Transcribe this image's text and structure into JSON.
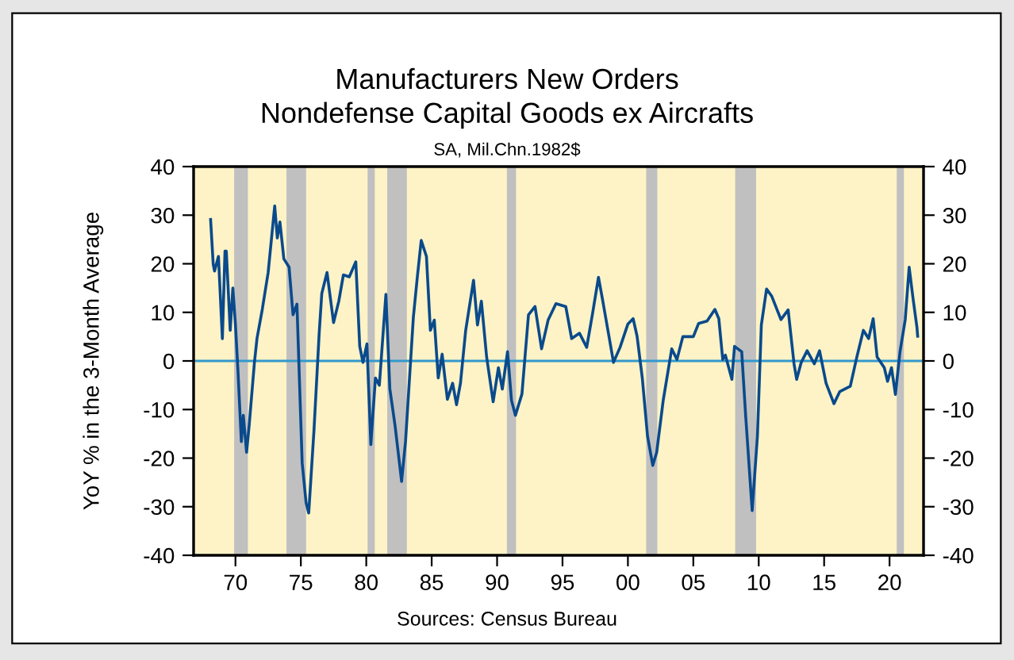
{
  "chart_data": {
    "type": "line",
    "title": "Manufacturers New Orders\nNondefense Capital Goods ex Aircrafts",
    "subtitle": "SA, Mil.Chn.1982$",
    "ylabel": "YoY % in the 3-Month Average",
    "annotations": [
      "Sources: Census Bureau"
    ],
    "series": [
      {
        "color": "#0a4a8c",
        "x": [
          1968.1,
          1968.3,
          1968.4,
          1968.7,
          1969.0,
          1969.2,
          1969.3,
          1969.6,
          1969.8,
          1970.0,
          1970.2,
          1970.45,
          1970.6,
          1970.85,
          1971.05,
          1971.45,
          1971.65,
          1972.05,
          1972.5,
          1973.0,
          1973.2,
          1973.4,
          1973.7,
          1974.1,
          1974.4,
          1974.7,
          1975.1,
          1975.4,
          1975.6,
          1976.0,
          1976.4,
          1976.6,
          1977.0,
          1977.5,
          1977.9,
          1978.25,
          1978.7,
          1979.2,
          1979.5,
          1979.75,
          1980.05,
          1980.35,
          1980.7,
          1981.0,
          1981.5,
          1981.8,
          1982.2,
          1982.7,
          1983.0,
          1983.6,
          1983.9,
          1984.2,
          1984.6,
          1984.9,
          1985.2,
          1985.5,
          1985.8,
          1986.2,
          1986.6,
          1986.9,
          1987.2,
          1987.6,
          1988.2,
          1988.5,
          1988.8,
          1989.2,
          1989.7,
          1990.1,
          1990.4,
          1990.8,
          1991.1,
          1991.4,
          1991.9,
          1992.4,
          1992.9,
          1993.4,
          1993.9,
          1994.5,
          1995.25,
          1995.7,
          1996.3,
          1996.85,
          1997.3,
          1997.75,
          1998.05,
          1998.55,
          1998.9,
          1999.4,
          2000.0,
          2000.4,
          2000.7,
          2001.1,
          2001.5,
          2001.9,
          2002.2,
          2002.7,
          2003.35,
          2003.75,
          2004.2,
          2005.0,
          2005.4,
          2006.05,
          2006.65,
          2006.95,
          2007.25,
          2007.45,
          2007.95,
          2008.15,
          2008.7,
          2009.0,
          2009.5,
          2009.9,
          2010.2,
          2010.6,
          2011.0,
          2011.7,
          2012.25,
          2012.7,
          2012.9,
          2013.25,
          2013.7,
          2014.25,
          2014.65,
          2015.15,
          2015.75,
          2016.2,
          2017.0,
          2017.5,
          2018.0,
          2018.4,
          2018.75,
          2019.05,
          2019.6,
          2019.85,
          2020.15,
          2020.45,
          2020.8,
          2021.2,
          2021.5,
          2021.8,
          2022.1,
          2022.15
        ],
        "values": [
          29.1,
          19.9,
          18.5,
          21.5,
          4.6,
          22.6,
          22.6,
          6.3,
          15,
          7.4,
          -2.5,
          -16.6,
          -11.2,
          -18.8,
          -13.2,
          -0.3,
          4.7,
          10.6,
          18.2,
          31.9,
          25.3,
          28.6,
          21,
          19.3,
          9.5,
          11.7,
          -21,
          -29.2,
          -31.3,
          -14.4,
          5.7,
          13.9,
          18.2,
          7.9,
          12.3,
          17.7,
          17.3,
          20.4,
          3,
          -0.3,
          3.5,
          -17.2,
          -3.5,
          -5,
          13.7,
          -5.7,
          -13.3,
          -24.8,
          -16.6,
          9,
          17.2,
          24.8,
          21.5,
          6.3,
          8.4,
          -3.5,
          1.4,
          -7.9,
          -4.6,
          -9,
          -4.6,
          6.3,
          16.6,
          7.4,
          12.3,
          0.8,
          -8.4,
          -1.4,
          -5.8,
          1.9,
          -8.1,
          -11.2,
          -6.8,
          9.5,
          11.2,
          2.5,
          8.4,
          11.8,
          11.2,
          4.6,
          5.7,
          2.8,
          9.8,
          17.2,
          12.8,
          5.1,
          -0.3,
          2.8,
          7.6,
          8.7,
          5.1,
          -3.5,
          -15.5,
          -21.5,
          -18.8,
          -8.1,
          2.5,
          0.3,
          5,
          5,
          7.7,
          8.2,
          10.6,
          8.7,
          0.3,
          1.2,
          -3.8,
          3,
          1.9,
          -11.2,
          -30.8,
          -15.5,
          7.4,
          14.8,
          13.3,
          8.5,
          10.5,
          -0.6,
          -3.8,
          -0.3,
          2.1,
          -0.6,
          2.1,
          -4.6,
          -8.8,
          -6.3,
          -5.2,
          0.8,
          6.3,
          4.6,
          8.7,
          0.8,
          -1.4,
          -4.2,
          -1.4,
          -6.9,
          1.9,
          8.5,
          19.3,
          12.8,
          6.8,
          5.1
        ]
      }
    ],
    "xlim": [
      1966.8,
      2022.6
    ],
    "xticks": [
      {
        "value": 1970,
        "label": "70"
      },
      {
        "value": 1975,
        "label": "75"
      },
      {
        "value": 1980,
        "label": "80"
      },
      {
        "value": 1985,
        "label": "85"
      },
      {
        "value": 1990,
        "label": "90"
      },
      {
        "value": 1995,
        "label": "95"
      },
      {
        "value": 2000,
        "label": "00"
      },
      {
        "value": 2005,
        "label": "05"
      },
      {
        "value": 2010,
        "label": "10"
      },
      {
        "value": 2015,
        "label": "15"
      },
      {
        "value": 2020,
        "label": "20"
      }
    ],
    "ylim": [
      -40,
      40
    ],
    "yticks": [
      -40,
      -30,
      -20,
      -10,
      0,
      10,
      20,
      30,
      40
    ],
    "y2lim": [
      -40,
      40
    ],
    "y2ticks": [
      -40,
      -30,
      -20,
      -10,
      0,
      10,
      20,
      30,
      40
    ],
    "ref_lines": [
      {
        "axis": "y",
        "value": 0,
        "color": "#3399cc"
      }
    ],
    "bands": [
      {
        "axis": "x",
        "from": 1969.9,
        "to": 1970.95,
        "color": "#c0c0c0"
      },
      {
        "axis": "x",
        "from": 1973.9,
        "to": 1975.4,
        "color": "#c0c0c0"
      },
      {
        "axis": "x",
        "from": 1980.1,
        "to": 1980.65,
        "color": "#c0c0c0"
      },
      {
        "axis": "x",
        "from": 1981.6,
        "to": 1983.1,
        "color": "#c0c0c0"
      },
      {
        "axis": "x",
        "from": 1990.75,
        "to": 1991.45,
        "color": "#c0c0c0"
      },
      {
        "axis": "x",
        "from": 2001.4,
        "to": 2002.25,
        "color": "#c0c0c0"
      },
      {
        "axis": "x",
        "from": 2008.2,
        "to": 2009.8,
        "color": "#c0c0c0"
      },
      {
        "axis": "x",
        "from": 2020.55,
        "to": 2021.1,
        "color": "#c0c0c0"
      }
    ],
    "grid": false,
    "legend": false
  }
}
